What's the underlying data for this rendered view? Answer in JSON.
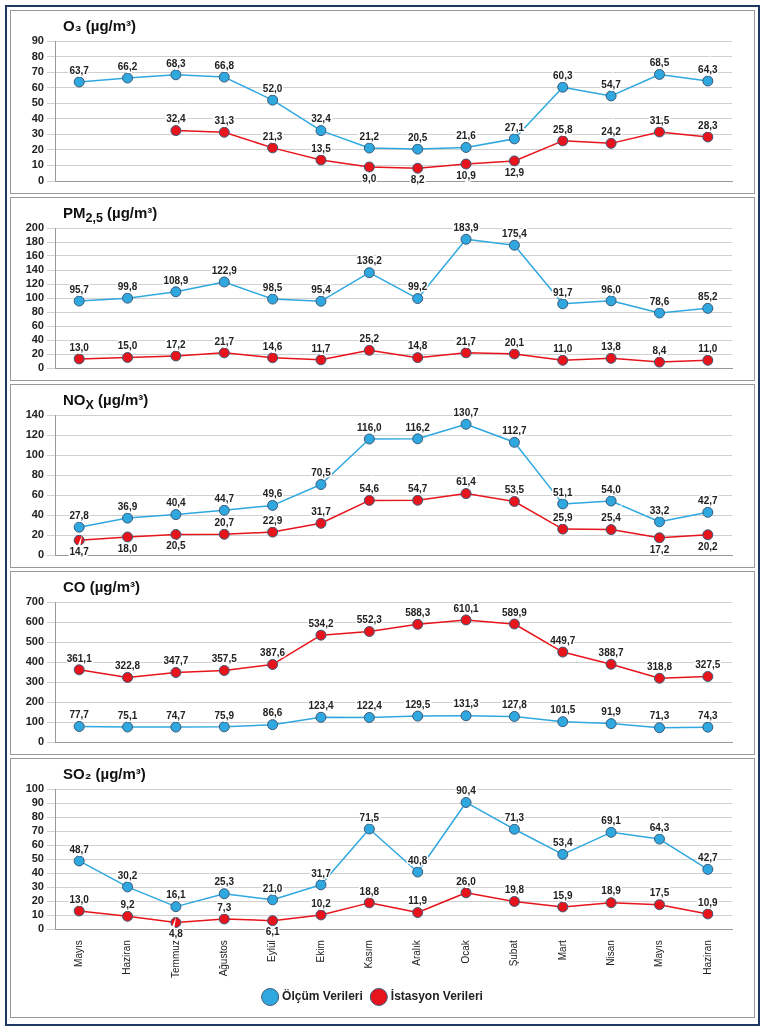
{
  "chart_data": [
    {
      "type": "line",
      "title": "O₃ (µg/m³)",
      "categories": [
        null,
        null,
        null,
        null,
        null,
        null,
        null,
        null,
        null,
        null,
        null,
        null,
        null,
        null
      ],
      "ylim": [
        0,
        90
      ],
      "yticks": [
        0,
        10,
        20,
        30,
        40,
        50,
        60,
        70,
        80,
        90
      ],
      "grid": "y",
      "marker": "circle",
      "legend": false,
      "tick_labels": "y",
      "series": [
        {
          "color": "#2fa8e0",
          "values": [
            63.7,
            66.2,
            68.3,
            66.8,
            52.0,
            32.4,
            21.2,
            20.5,
            21.6,
            27.1,
            60.3,
            54.7,
            68.5,
            64.3
          ],
          "value_labels": [
            "63,7",
            "66,2",
            "68,3",
            "66,8",
            "52,0",
            "32,4",
            "21,2",
            "20,5",
            "21,6",
            "27,1",
            "60,3",
            "54,7",
            "68,5",
            "64,3"
          ]
        },
        {
          "color": "#e8141c",
          "values": [
            null,
            null,
            32.4,
            31.3,
            21.3,
            13.5,
            9.0,
            8.2,
            10.9,
            12.9,
            25.8,
            24.2,
            31.5,
            28.3
          ],
          "value_labels": [
            null,
            null,
            "32,4",
            "31,3",
            "21,3",
            "13,5",
            "9,0",
            "8,2",
            "10,9",
            "12,9",
            "25,8",
            "24,2",
            "31,5",
            "28,3"
          ]
        }
      ]
    },
    {
      "type": "line",
      "title": "PM$_{2,5}$ (µg/m³)",
      "categories": [
        null,
        null,
        null,
        null,
        null,
        null,
        null,
        null,
        null,
        null,
        null,
        null,
        null,
        null
      ],
      "ylim": [
        0,
        200
      ],
      "yticks": [
        0,
        20,
        40,
        60,
        80,
        100,
        120,
        140,
        160,
        180,
        200
      ],
      "grid": "y",
      "marker": "circle",
      "legend": false,
      "tick_labels": "y",
      "series": [
        {
          "color": "#2fa8e0",
          "values": [
            95.7,
            99.8,
            108.9,
            122.9,
            98.5,
            95.4,
            136.2,
            99.2,
            183.9,
            175.4,
            91.7,
            96.0,
            78.6,
            85.2
          ],
          "value_labels": [
            "95,7",
            "99,8",
            "108,9",
            "122,9",
            "98,5",
            "95,4",
            "136,2",
            "99,2",
            "183,9",
            "175,4",
            "91,7",
            "96,0",
            "78,6",
            "85,2"
          ]
        },
        {
          "color": "#e8141c",
          "values": [
            13.0,
            15.0,
            17.2,
            21.7,
            14.6,
            11.7,
            25.2,
            14.8,
            21.7,
            20.1,
            11.0,
            13.8,
            8.4,
            11.0
          ],
          "value_labels": [
            "13,0",
            "15,0",
            "17,2",
            "21,7",
            "14,6",
            "11,7",
            "25,2",
            "14,8",
            "21,7",
            "20,1",
            "11,0",
            "13,8",
            "8,4",
            "11,0"
          ]
        }
      ]
    },
    {
      "type": "line",
      "title": "NO$_{X}$ (µg/m³)",
      "categories": [
        null,
        null,
        null,
        null,
        null,
        null,
        null,
        null,
        null,
        null,
        null,
        null,
        null,
        null
      ],
      "ylim": [
        0,
        140
      ],
      "yticks": [
        0,
        20,
        40,
        60,
        80,
        100,
        120,
        140
      ],
      "grid": "y",
      "marker": "circle",
      "legend": false,
      "tick_labels": "y",
      "series": [
        {
          "color": "#2fa8e0",
          "values": [
            27.8,
            36.9,
            40.4,
            44.7,
            49.6,
            70.5,
            116.0,
            116.2,
            130.7,
            112.7,
            51.1,
            54.0,
            33.2,
            42.7
          ],
          "value_labels": [
            "27,8",
            "36,9",
            "40,4",
            "44,7",
            "49,6",
            "70,5",
            "116,0",
            "116,2",
            "130,7",
            "112,7",
            "51,1",
            "54,0",
            "33,2",
            "42,7"
          ]
        },
        {
          "color": "#e8141c",
          "values": [
            14.7,
            18.0,
            20.5,
            20.7,
            22.9,
            31.7,
            54.6,
            54.7,
            61.4,
            53.5,
            25.9,
            25.4,
            17.2,
            20.2
          ],
          "value_labels": [
            "14,7",
            "18,0",
            "20,5",
            "20,7",
            "22,9",
            "31,7",
            "54,6",
            "54,7",
            "61,4",
            "53,5",
            "25,9",
            "25,4",
            "17,2",
            "20,2"
          ]
        }
      ]
    },
    {
      "type": "line",
      "title": "CO (µg/m³)",
      "categories": [
        null,
        null,
        null,
        null,
        null,
        null,
        null,
        null,
        null,
        null,
        null,
        null,
        null,
        null
      ],
      "ylim": [
        0,
        700
      ],
      "yticks": [
        0,
        100,
        200,
        300,
        400,
        500,
        600,
        700
      ],
      "grid": "y",
      "marker": "circle",
      "legend": false,
      "tick_labels": "y",
      "series": [
        {
          "color": "#2fa8e0",
          "values": [
            77.7,
            75.1,
            74.7,
            75.9,
            86.6,
            123.4,
            122.4,
            129.5,
            131.3,
            127.8,
            101.5,
            91.9,
            71.3,
            74.3
          ],
          "value_labels": [
            "77,7",
            "75,1",
            "74,7",
            "75,9",
            "86,6",
            "123,4",
            "122,4",
            "129,5",
            "131,3",
            "127,8",
            "101,5",
            "91,9",
            "71,3",
            "74,3"
          ]
        },
        {
          "color": "#e8141c",
          "values": [
            361.1,
            322.8,
            347.7,
            357.5,
            387.6,
            534.2,
            552.3,
            588.3,
            610.1,
            589.9,
            449.7,
            388.7,
            318.8,
            327.5
          ],
          "value_labels": [
            "361,1",
            "322,8",
            "347,7",
            "357,5",
            "387,6",
            "534,2",
            "552,3",
            "588,3",
            "610,1",
            "589,9",
            "449,7",
            "388,7",
            "318,8",
            "327,5"
          ]
        }
      ]
    },
    {
      "type": "line",
      "title": "SO₂ (µg/m³)",
      "categories": [
        "Mayıs",
        "Haziran",
        "Temmuz",
        "Ağustos",
        "Eylül",
        "Ekim",
        "Kasım",
        "Aralık",
        "Ocak",
        "Şubat",
        "Mart",
        "Nisan",
        "Mayıs",
        "Haziran"
      ],
      "ylim": [
        0,
        100
      ],
      "yticks": [
        0,
        10,
        20,
        30,
        40,
        50,
        60,
        70,
        80,
        90,
        100
      ],
      "grid": "y",
      "marker": "circle",
      "legend": "bottom",
      "series": [
        {
          "name": "Ölçüm Verileri",
          "color": "#2fa8e0",
          "values": [
            48.7,
            30.2,
            16.1,
            25.3,
            21.0,
            31.7,
            71.5,
            40.8,
            90.4,
            71.3,
            53.4,
            69.1,
            64.3,
            42.7
          ],
          "value_labels": [
            "48,7",
            "30,2",
            "16,1",
            "25,3",
            "21,0",
            "31,7",
            "71,5",
            "40,8",
            "90,4",
            "71,3",
            "53,4",
            "69,1",
            "64,3",
            "42,7"
          ]
        },
        {
          "name": "İstasyon Verileri",
          "color": "#e8141c",
          "values": [
            13.0,
            9.2,
            4.8,
            7.3,
            6.1,
            10.2,
            18.8,
            11.9,
            26.0,
            19.8,
            15.9,
            18.9,
            17.5,
            10.9
          ],
          "value_labels": [
            "13,0",
            "9,2",
            "4,8",
            "7,3",
            "6,1",
            "10,2",
            "18,8",
            "11,9",
            "26,0",
            "19,8",
            "15,9",
            "18,9",
            "17,5",
            "10,9"
          ]
        }
      ]
    }
  ]
}
